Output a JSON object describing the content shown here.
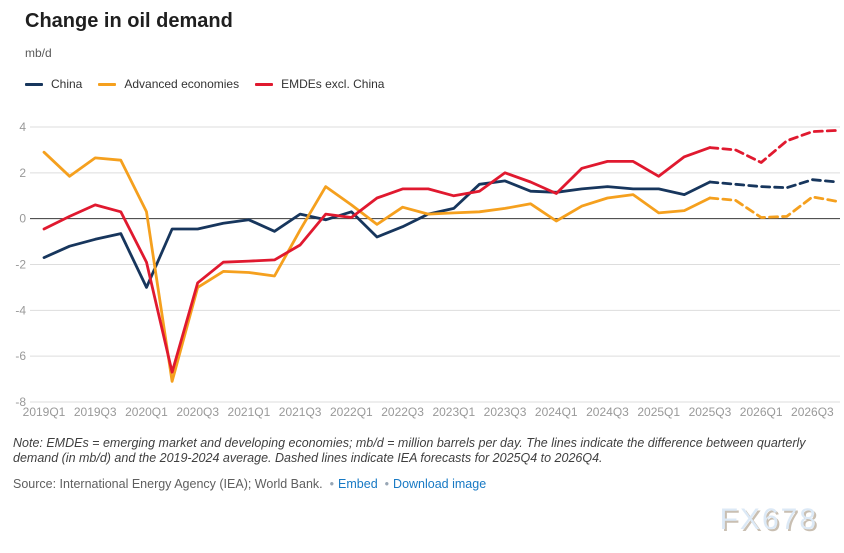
{
  "header": {
    "title": "Change in oil demand",
    "unit": "mb/d"
  },
  "legend": [
    {
      "label": "China",
      "color": "#17365d"
    },
    {
      "label": "Advanced economies",
      "color": "#f5a01e"
    },
    {
      "label": "EMDEs excl. China",
      "color": "#e0192f"
    }
  ],
  "chart_data": {
    "type": "line",
    "title": "Change in oil demand",
    "xlabel": "",
    "ylabel": "mb/d",
    "ylim": [
      -8,
      4
    ],
    "ytick_step": 2,
    "grid": true,
    "legend_position": "top-left",
    "categories": [
      "2019Q1",
      "2019Q2",
      "2019Q3",
      "2019Q4",
      "2020Q1",
      "2020Q2",
      "2020Q3",
      "2020Q4",
      "2021Q1",
      "2021Q2",
      "2021Q3",
      "2021Q4",
      "2022Q1",
      "2022Q2",
      "2022Q3",
      "2022Q4",
      "2023Q1",
      "2023Q2",
      "2023Q3",
      "2023Q4",
      "2024Q1",
      "2024Q2",
      "2024Q3",
      "2024Q4",
      "2025Q1",
      "2025Q2",
      "2025Q3",
      "2025Q4",
      "2026Q1",
      "2026Q2",
      "2026Q3",
      "2026Q4"
    ],
    "x_tick_labels": [
      "2019Q1",
      "2019Q3",
      "2020Q1",
      "2020Q3",
      "2021Q1",
      "2021Q3",
      "2022Q1",
      "2022Q3",
      "2023Q1",
      "2023Q3",
      "2024Q1",
      "2024Q3",
      "2025Q1",
      "2025Q3",
      "2026Q1",
      "2026Q3"
    ],
    "forecast_start_index": 26,
    "forecast_note": "Values from 2025Q4 to 2026Q4 are IEA forecasts drawn with dashed lines",
    "series": [
      {
        "name": "China",
        "color": "#17365d",
        "values": [
          -1.7,
          -1.2,
          -0.9,
          -0.65,
          -3.0,
          -0.45,
          -0.45,
          -0.2,
          -0.05,
          -0.55,
          0.2,
          -0.05,
          0.3,
          -0.8,
          -0.35,
          0.2,
          0.45,
          1.5,
          1.65,
          1.2,
          1.15,
          1.3,
          1.4,
          1.3,
          1.3,
          1.05,
          1.6,
          1.5,
          1.4,
          1.35,
          1.7,
          1.6
        ]
      },
      {
        "name": "Advanced economies",
        "color": "#f5a01e",
        "values": [
          2.9,
          1.85,
          2.65,
          2.55,
          0.3,
          -7.1,
          -3.0,
          -2.3,
          -2.35,
          -2.5,
          -0.5,
          1.4,
          0.6,
          -0.25,
          0.5,
          0.2,
          0.25,
          0.3,
          0.45,
          0.65,
          -0.1,
          0.55,
          0.9,
          1.05,
          0.25,
          0.35,
          0.9,
          0.8,
          0.05,
          0.1,
          0.95,
          0.75
        ]
      },
      {
        "name": "EMDEs excl. China",
        "color": "#e0192f",
        "values": [
          -0.45,
          0.1,
          0.6,
          0.3,
          -1.9,
          -6.7,
          -2.8,
          -1.9,
          -1.85,
          -1.8,
          -1.15,
          0.2,
          0.05,
          0.9,
          1.3,
          1.3,
          1.0,
          1.2,
          2.0,
          1.6,
          1.1,
          2.2,
          2.5,
          2.5,
          1.85,
          2.7,
          3.1,
          3.0,
          2.45,
          3.4,
          3.8,
          3.85
        ]
      }
    ]
  },
  "axis_style": {
    "label_color": "#999999",
    "grid_color": "#dddddd",
    "zero_line_color": "#3a3a3a"
  },
  "footer": {
    "note": "Note: EMDEs = emerging market and developing economies; mb/d = million barrels per day. The lines indicate the difference between quarterly demand (in mb/d) and the 2019-2024 average. Dashed lines indicate IEA forecasts for 2025Q4 to 2026Q4.",
    "source": "Source: International Energy Agency (IEA); World Bank.",
    "separator": "•",
    "links": [
      {
        "label": "Embed"
      },
      {
        "label": "Download image"
      }
    ],
    "watermark": "FX678"
  }
}
